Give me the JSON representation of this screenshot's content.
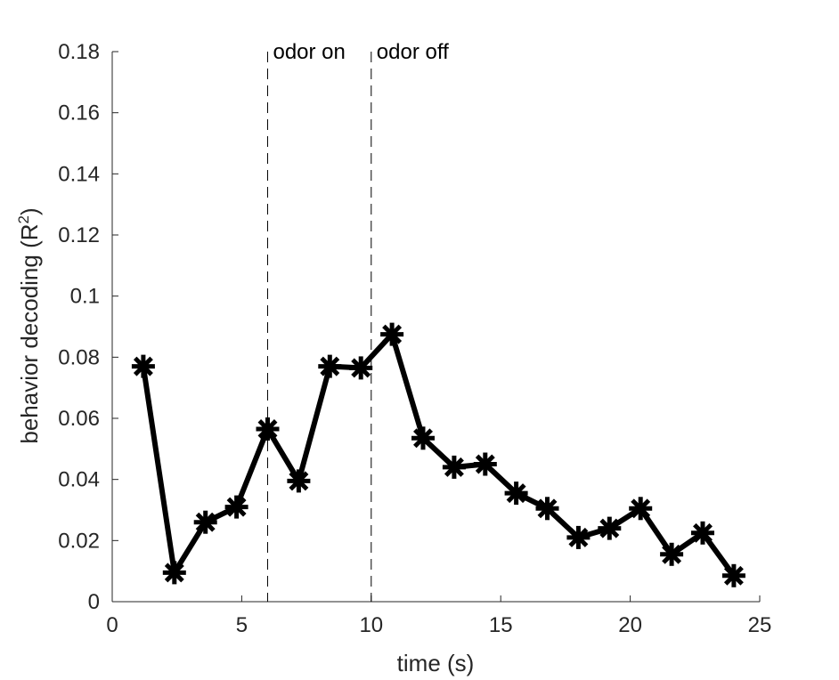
{
  "chart_data": {
    "type": "line",
    "title": "",
    "xlabel": "time (s)",
    "ylabel": "behavior decoding (R",
    "ylabel_sup": "2",
    "ylabel_end": ")",
    "xlim": [
      0,
      25
    ],
    "ylim": [
      0,
      0.18
    ],
    "xticks": [
      0,
      5,
      10,
      15,
      20,
      25
    ],
    "xtick_labels": [
      "0",
      "5",
      "10",
      "15",
      "20",
      "25"
    ],
    "yticks": [
      0,
      0.02,
      0.04,
      0.06,
      0.08,
      0.1,
      0.12,
      0.14,
      0.16,
      0.18
    ],
    "ytick_labels": [
      "0",
      "0.02",
      "0.04",
      "0.06",
      "0.08",
      "0.1",
      "0.12",
      "0.14",
      "0.16",
      "0.18"
    ],
    "grid": false,
    "marker": "asterisk",
    "series": [
      {
        "color": "#000000",
        "x": [
          1.2,
          2.4,
          3.6,
          4.8,
          6.0,
          7.2,
          8.4,
          9.6,
          10.8,
          12.0,
          13.2,
          14.4,
          15.6,
          16.8,
          18.0,
          19.2,
          20.4,
          21.6,
          22.8,
          24.0
        ],
        "y": [
          0.077,
          0.0095,
          0.026,
          0.031,
          0.0565,
          0.0395,
          0.077,
          0.0765,
          0.0875,
          0.0535,
          0.044,
          0.045,
          0.0355,
          0.0305,
          0.021,
          0.024,
          0.0305,
          0.0155,
          0.0225,
          0.0085
        ]
      }
    ],
    "vlines": [
      {
        "x": 6,
        "style": "dashed",
        "label": "odor on"
      },
      {
        "x": 10,
        "style": "dashed",
        "label": "odor off"
      }
    ]
  }
}
